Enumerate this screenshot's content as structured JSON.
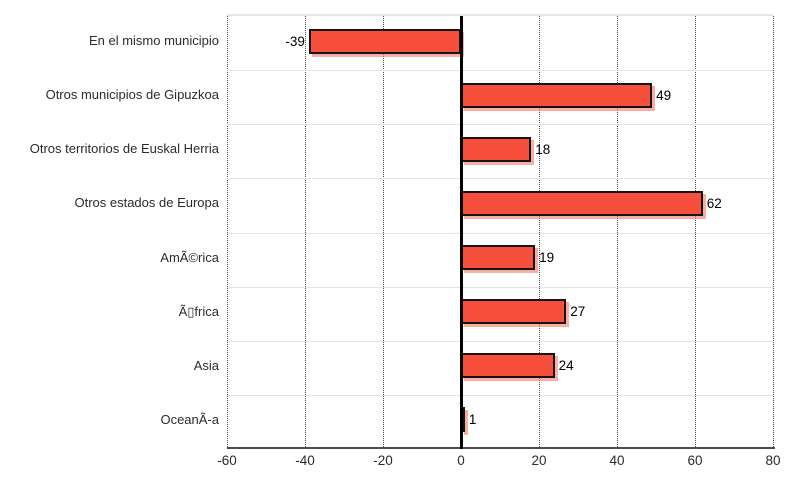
{
  "chart_data": {
    "type": "bar",
    "orientation": "horizontal",
    "title": "",
    "xlabel": "",
    "ylabel": "",
    "categories": [
      "En el mismo municipio",
      "Otros municipios de Gipuzkoa",
      "Otros territorios de Euskal Herria",
      "Otros estados de Europa",
      "AmÃ©rica",
      "Ã▯frica",
      "Asia",
      "OceanÃ-a"
    ],
    "values": [
      -39,
      49,
      18,
      62,
      19,
      27,
      24,
      1
    ],
    "value_labels": [
      "-39",
      "49",
      "18",
      "62",
      "19",
      "27",
      "24",
      "1"
    ],
    "xlim": [
      -60,
      80
    ],
    "xticks": [
      -60,
      -40,
      -20,
      0,
      20,
      40,
      60,
      80
    ],
    "xtick_labels": [
      "-60",
      "-40",
      "-20",
      "0",
      "20",
      "40",
      "60",
      "80"
    ],
    "legend": "none",
    "grid": "vertical-dotted",
    "colors": {
      "bar_fill": "#f6503c",
      "bar_border": "#141414",
      "bar_shadow": "rgba(247,119,99,0.6)",
      "zero_line": "#000000",
      "grid_line": "#4a4a4a",
      "row_separator": "#e2e2e2",
      "axis_line": "#4d4d4d",
      "text": "#2b2b2b"
    }
  }
}
